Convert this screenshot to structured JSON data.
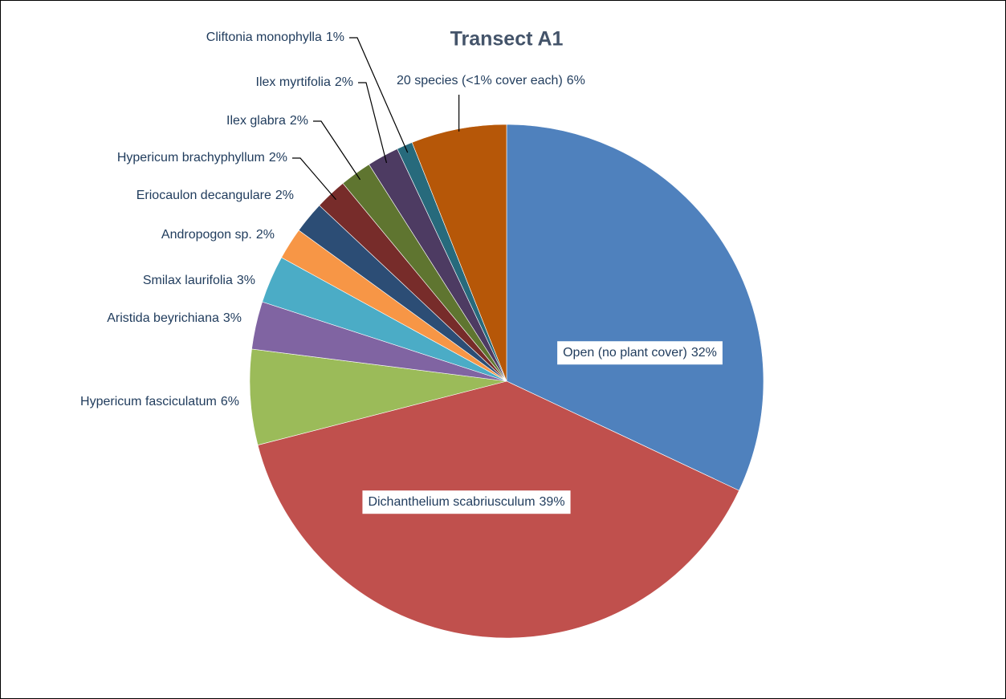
{
  "chart_data": {
    "type": "pie",
    "title": "Transect A1",
    "categories": [
      "Open (no plant cover)",
      "Dichanthelium scabriusculum",
      "Hypericum fasciculatum",
      "Aristida beyrichiana",
      "Smilax laurifolia",
      "Andropogon sp.",
      "Eriocaulon decangulare",
      "Hypericum brachyphyllum",
      "Ilex glabra",
      "Ilex myrtifolia",
      "Cliftonia monophylla",
      "20 species (<1% cover each)"
    ],
    "values": [
      32,
      39,
      6,
      3,
      3,
      2,
      2,
      2,
      2,
      2,
      1,
      6
    ],
    "value_labels": [
      "32%",
      "39%",
      "6%",
      "3%",
      "3%",
      "2%",
      "2%",
      "2%",
      "2%",
      "2%",
      "1%",
      "6%"
    ],
    "colors": [
      "#4f81bd",
      "#c0504d",
      "#9bbb59",
      "#8064a2",
      "#4bacc6",
      "#f79646",
      "#2c4d75",
      "#772c2a",
      "#5f7530",
      "#4d3b62",
      "#276a7c",
      "#b65708"
    ]
  }
}
